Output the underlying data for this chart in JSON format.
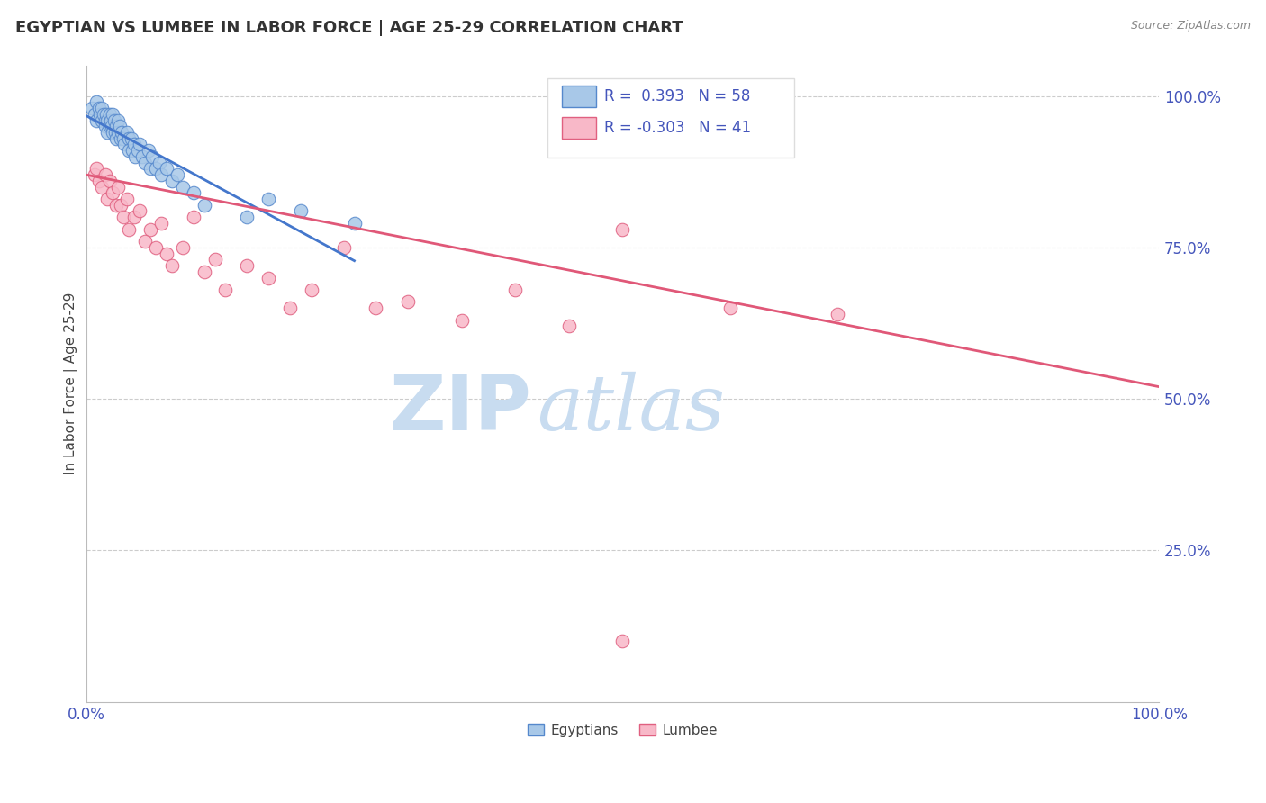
{
  "title": "EGYPTIAN VS LUMBEE IN LABOR FORCE | AGE 25-29 CORRELATION CHART",
  "source_text": "Source: ZipAtlas.com",
  "ylabel": "In Labor Force | Age 25-29",
  "xlim": [
    0.0,
    1.0
  ],
  "ylim": [
    0.0,
    1.05
  ],
  "right_ytick_values": [
    0.25,
    0.5,
    0.75,
    1.0
  ],
  "right_ytick_labels": [
    "25.0%",
    "50.0%",
    "75.0%",
    "100.0%"
  ],
  "xtick_values": [
    0.0,
    1.0
  ],
  "xtick_labels": [
    "0.0%",
    "100.0%"
  ],
  "R_egyptian": 0.393,
  "N_egyptian": 58,
  "R_lumbee": -0.303,
  "N_lumbee": 41,
  "color_egyptian_fill": "#A8C8E8",
  "color_egyptian_edge": "#5588CC",
  "color_lumbee_fill": "#F8B8C8",
  "color_lumbee_edge": "#E06080",
  "color_line_egyptian": "#4477CC",
  "color_line_lumbee": "#E05878",
  "background_color": "#FFFFFF",
  "grid_color": "#CCCCCC",
  "title_color": "#333333",
  "watermark_zip": "ZIP",
  "watermark_atlas": "atlas",
  "watermark_color": "#C8DCF0",
  "axis_tick_color": "#4455BB",
  "legend_box_color": "#DDDDDD",
  "egyptian_x": [
    0.005,
    0.008,
    0.01,
    0.01,
    0.012,
    0.013,
    0.015,
    0.015,
    0.016,
    0.018,
    0.018,
    0.019,
    0.02,
    0.02,
    0.022,
    0.022,
    0.023,
    0.024,
    0.025,
    0.025,
    0.026,
    0.027,
    0.028,
    0.028,
    0.03,
    0.03,
    0.031,
    0.032,
    0.033,
    0.035,
    0.036,
    0.038,
    0.04,
    0.04,
    0.042,
    0.043,
    0.045,
    0.046,
    0.048,
    0.05,
    0.052,
    0.055,
    0.058,
    0.06,
    0.062,
    0.065,
    0.068,
    0.07,
    0.075,
    0.08,
    0.085,
    0.09,
    0.1,
    0.11,
    0.15,
    0.17,
    0.2,
    0.25
  ],
  "egyptian_y": [
    0.98,
    0.97,
    0.99,
    0.96,
    0.98,
    0.97,
    0.98,
    0.96,
    0.97,
    0.96,
    0.95,
    0.97,
    0.96,
    0.94,
    0.97,
    0.95,
    0.96,
    0.95,
    0.97,
    0.94,
    0.96,
    0.94,
    0.95,
    0.93,
    0.96,
    0.94,
    0.95,
    0.93,
    0.94,
    0.93,
    0.92,
    0.94,
    0.93,
    0.91,
    0.93,
    0.91,
    0.92,
    0.9,
    0.91,
    0.92,
    0.9,
    0.89,
    0.91,
    0.88,
    0.9,
    0.88,
    0.89,
    0.87,
    0.88,
    0.86,
    0.87,
    0.85,
    0.84,
    0.82,
    0.8,
    0.83,
    0.81,
    0.79
  ],
  "lumbee_x": [
    0.008,
    0.01,
    0.012,
    0.015,
    0.018,
    0.02,
    0.022,
    0.025,
    0.028,
    0.03,
    0.032,
    0.035,
    0.038,
    0.04,
    0.045,
    0.05,
    0.055,
    0.06,
    0.065,
    0.07,
    0.075,
    0.08,
    0.09,
    0.1,
    0.11,
    0.12,
    0.13,
    0.15,
    0.17,
    0.19,
    0.21,
    0.24,
    0.27,
    0.3,
    0.35,
    0.4,
    0.45,
    0.5,
    0.6,
    0.7,
    0.5
  ],
  "lumbee_y": [
    0.87,
    0.88,
    0.86,
    0.85,
    0.87,
    0.83,
    0.86,
    0.84,
    0.82,
    0.85,
    0.82,
    0.8,
    0.83,
    0.78,
    0.8,
    0.81,
    0.76,
    0.78,
    0.75,
    0.79,
    0.74,
    0.72,
    0.75,
    0.8,
    0.71,
    0.73,
    0.68,
    0.72,
    0.7,
    0.65,
    0.68,
    0.75,
    0.65,
    0.66,
    0.63,
    0.68,
    0.62,
    0.78,
    0.65,
    0.64,
    0.1
  ],
  "lumbee_trend_x0": 0.0,
  "lumbee_trend_y0": 0.87,
  "lumbee_trend_x1": 1.0,
  "lumbee_trend_y1": 0.52
}
